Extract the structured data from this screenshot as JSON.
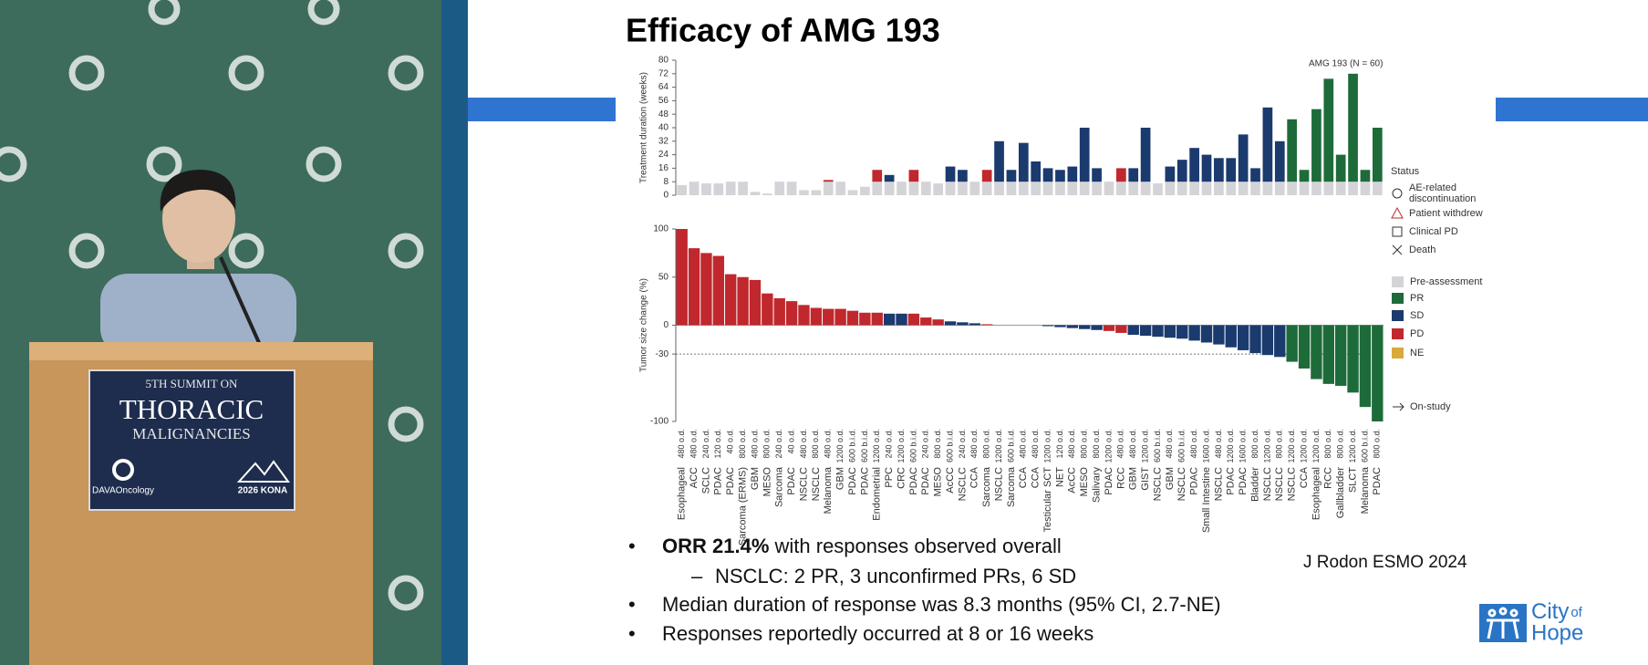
{
  "video": {
    "sign": {
      "line1": "5TH SUMMIT ON",
      "title": "THORACIC",
      "subtitle": "MALIGNANCIES",
      "left_logo": "DAVAOncology",
      "right_logo": "2026 KONA"
    }
  },
  "slide": {
    "title": "Efficacy of AMG 193",
    "bullets": [
      {
        "bold": "ORR 21.4%",
        "text": " with responses observed overall",
        "sub": [
          "NSCLC: 2 PR, 3 unconfirmed PRs, 6 SD"
        ]
      },
      {
        "text": "Median duration of response was 8.3 months (95% CI, 2.7-NE)"
      },
      {
        "text": "Responses reportedly occurred at 8 or 16 weeks"
      }
    ],
    "citation": "J Rodon ESMO 2024",
    "logo": {
      "word1": "City",
      "word2": "of",
      "word3": "Hope"
    }
  },
  "chart_data": [
    {
      "type": "swimmer",
      "ylabel": "Treatment duration (weeks)",
      "annotation": "AMG 193 (N = 60)",
      "ylim": [
        0,
        80
      ],
      "yticks": [
        0,
        8,
        16,
        24,
        32,
        40,
        48,
        56,
        64,
        72,
        80
      ],
      "pre_assessment": [
        6,
        8,
        7,
        7,
        8,
        8,
        2,
        1,
        8,
        8,
        3,
        3,
        8,
        8,
        3,
        5,
        8,
        8,
        8,
        8,
        8,
        7,
        8,
        8,
        8,
        8,
        8,
        8,
        8,
        8,
        8,
        8,
        8,
        8,
        8,
        8,
        8,
        8,
        8,
        7,
        8,
        8,
        8,
        8,
        8,
        8,
        8,
        8,
        8,
        8,
        8,
        8,
        8,
        8,
        8,
        8,
        8,
        8
      ],
      "treatment": [
        0,
        0,
        0,
        0,
        0,
        0,
        0,
        0,
        0,
        0,
        0,
        0,
        1,
        0,
        0,
        0,
        7,
        4,
        0,
        7,
        0,
        0,
        9,
        7,
        0,
        7,
        24,
        7,
        23,
        12,
        8,
        7,
        9,
        32,
        8,
        0,
        8,
        8,
        32,
        0,
        9,
        13,
        20,
        16,
        14,
        14,
        28,
        8,
        44,
        24,
        37,
        7,
        43,
        61,
        16,
        64,
        7,
        32
      ],
      "status_title": "Status",
      "status_legend": [
        [
          "AE-related",
          "discontinuation"
        ],
        [
          "Patient withdrew"
        ],
        [
          "Clinical PD"
        ],
        [
          "Death"
        ]
      ]
    },
    {
      "type": "bar",
      "ylabel": "Tumor size change (%)",
      "ylim": [
        -100,
        100
      ],
      "yticks": [
        -100,
        -30,
        0,
        50,
        100
      ],
      "threshold": -30,
      "categories": [
        "Esophageal",
        "ACC",
        "SCLC",
        "PDAC",
        "PDAC",
        "Sarcoma (ERMS)",
        "GBM",
        "MESO",
        "Sarcoma",
        "PDAC",
        "NSCLC",
        "NSCLC",
        "Melanoma",
        "GBM",
        "PDAC",
        "PDAC",
        "Endometrial",
        "PPC",
        "CRC",
        "PDAC",
        "PDAC",
        "MESO",
        "AcCC",
        "NSCLC",
        "CCA",
        "Sarcoma",
        "NSCLC",
        "Sarcoma",
        "CCA",
        "CCA",
        "Testicular SCT",
        "NET",
        "AcCC",
        "MESO",
        "Salivary",
        "PDAC",
        "RCC",
        "GBM",
        "GIST",
        "NSCLC",
        "GBM",
        "NSCLC",
        "PDAC",
        "Small Intestine",
        "NSCLC",
        "PDAC",
        "PDAC",
        "Bladder",
        "NSCLC",
        "NSCLC",
        "NSCLC",
        "CCA",
        "Esophageal",
        "RCC",
        "Gallbladder",
        "SLCT",
        "Melanoma",
        "PDAC"
      ],
      "doses": [
        "480 o.d.",
        "480 o.d.",
        "240 o.d.",
        "120 o.d.",
        "40 o.d.",
        "800 o.d.",
        "480 o.d.",
        "800 o.d.",
        "240 o.d.",
        "40 o.d.",
        "480 o.d.",
        "800 o.d.",
        "480 o.d.",
        "1200 o.d.",
        "600 b.i.d.",
        "600 b.i.d.",
        "1200 o.d.",
        "240 o.d.",
        "1200 o.d.",
        "600 b.i.d.",
        "240 o.d.",
        "800 o.d.",
        "600 b.i.d.",
        "240 o.d.",
        "480 o.d.",
        "800 o.d.",
        "1200 o.d.",
        "600 b.i.d.",
        "480 o.d.",
        "480 o.d.",
        "1200 o.d.",
        "120 o.d.",
        "480 o.d.",
        "800 o.d.",
        "800 o.d.",
        "1200 o.d.",
        "480 o.d.",
        "480 o.d.",
        "1200 o.d.",
        "600 b.i.d.",
        "480 o.d.",
        "600 b.i.d.",
        "480 o.d.",
        "1600 o.d.",
        "480 o.d.",
        "1200 o.d.",
        "1600 o.d.",
        "800 o.d.",
        "1200 o.d.",
        "800 o.d.",
        "1200 o.d.",
        "1200 o.d.",
        "1200 o.d.",
        "800 o.d.",
        "800 o.d.",
        "1200 o.d.",
        "600 b.i.d.",
        "800 o.d."
      ],
      "values": [
        100,
        80,
        75,
        72,
        53,
        50,
        47,
        33,
        28,
        25,
        21,
        18,
        17,
        17,
        15,
        13,
        13,
        12,
        12,
        12,
        8,
        6,
        4,
        3,
        2,
        1,
        0,
        0,
        0,
        0,
        -1,
        -2,
        -3,
        -4,
        -5,
        -6,
        -8,
        -10,
        -11,
        -12,
        -13,
        -14,
        -16,
        -18,
        -20,
        -23,
        -26,
        -29,
        -31,
        -33,
        -38,
        -45,
        -56,
        -61,
        -63,
        -70,
        -85,
        -100
      ],
      "responses": [
        "PD",
        "PD",
        "PD",
        "PD",
        "PD",
        "PD",
        "PD",
        "PD",
        "PD",
        "PD",
        "PD",
        "PD",
        "PD",
        "PD",
        "PD",
        "PD",
        "PD",
        "SD",
        "SD",
        "PD",
        "PD",
        "PD",
        "SD",
        "SD",
        "SD",
        "PD",
        "SD",
        "SD",
        "SD",
        "SD",
        "SD",
        "SD",
        "SD",
        "SD",
        "SD",
        "PD",
        "PD",
        "SD",
        "SD",
        "SD",
        "SD",
        "SD",
        "SD",
        "SD",
        "SD",
        "SD",
        "SD",
        "SD",
        "SD",
        "SD",
        "PR",
        "PR",
        "PR",
        "PR",
        "PR",
        "PR",
        "PR",
        "PR"
      ],
      "legend": [
        {
          "name": "Pre-assessment",
          "color": "#d4d4d8"
        },
        {
          "name": "PR",
          "color": "#1e6b3a"
        },
        {
          "name": "SD",
          "color": "#1b3a6e"
        },
        {
          "name": "PD",
          "color": "#c0282d"
        },
        {
          "name": "NE",
          "color": "#d9a93a"
        }
      ],
      "on_study": "On-study"
    }
  ]
}
